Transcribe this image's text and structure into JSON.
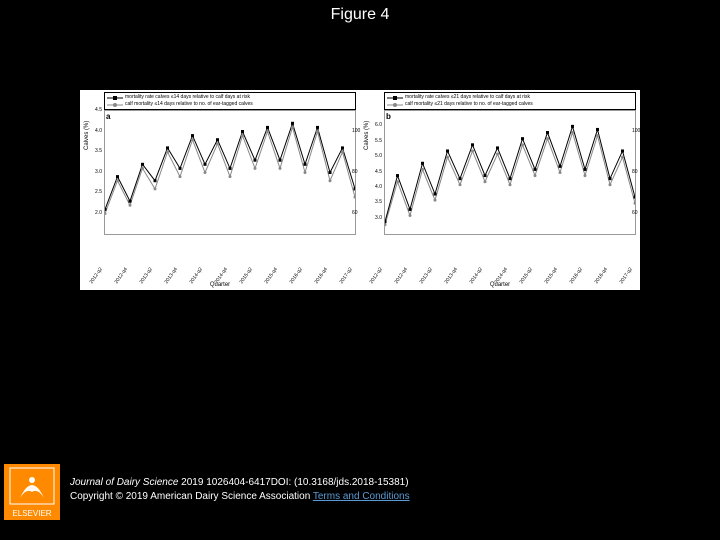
{
  "figure_title": "Figure 4",
  "background_color": "#000000",
  "chart_background": "#ffffff",
  "axis_color": "#999999",
  "x_labels": [
    "2012-q2",
    "2012-q4",
    "2013-q2",
    "2013-q4",
    "2014-q2",
    "2014-q4",
    "2015-q2",
    "2015-q4",
    "2016-q2",
    "2016-q4",
    "2017-q2"
  ],
  "panels": {
    "a": {
      "letter": "a",
      "legend": [
        "mortality rate calves ≤14 days relative to calf days at risk",
        "calf mortality ≤14 days relative to no. of ear-tagged calves"
      ],
      "yaxis_label": "Calves (%)",
      "xaxis_label": "Quarter",
      "y_left": {
        "min": 1.5,
        "max": 4.5,
        "ticks": [
          2.0,
          2.5,
          3.0,
          3.5,
          4.0,
          4.5
        ]
      },
      "y_right": {
        "min": 50,
        "max": 110,
        "ticks": [
          60,
          80,
          100
        ]
      },
      "series": [
        {
          "name": "s1",
          "color": "#000000",
          "marker": "square",
          "values": [
            2.1,
            2.9,
            2.3,
            3.2,
            2.8,
            3.6,
            3.1,
            3.9,
            3.2,
            3.8,
            3.1,
            4.0,
            3.3,
            4.1,
            3.3,
            4.2,
            3.2,
            4.1,
            3.0,
            3.6,
            2.6
          ]
        },
        {
          "name": "s2",
          "color": "#888888",
          "marker": "circle",
          "values": [
            2.0,
            2.8,
            2.2,
            3.1,
            2.6,
            3.5,
            2.9,
            3.8,
            3.0,
            3.7,
            2.9,
            3.9,
            3.1,
            4.0,
            3.1,
            4.1,
            3.0,
            4.0,
            2.8,
            3.5,
            2.4
          ]
        }
      ]
    },
    "b": {
      "letter": "b",
      "legend": [
        "mortality rate calves ≤21 days relative to calf days at risk",
        "calf mortality ≤21 days relative to no. of ear-tagged calves"
      ],
      "yaxis_label": "Calves (%)",
      "xaxis_label": "Quarter",
      "y_left": {
        "min": 2.5,
        "max": 6.5,
        "ticks": [
          3.0,
          3.5,
          4.0,
          4.5,
          5.0,
          5.5,
          6.0
        ]
      },
      "y_right": {
        "min": 50,
        "max": 110,
        "ticks": [
          60,
          80,
          100
        ]
      },
      "series": [
        {
          "name": "s1",
          "color": "#000000",
          "marker": "square",
          "values": [
            2.9,
            4.4,
            3.3,
            4.8,
            3.8,
            5.2,
            4.3,
            5.4,
            4.4,
            5.3,
            4.3,
            5.6,
            4.6,
            5.8,
            4.7,
            6.0,
            4.6,
            5.9,
            4.3,
            5.2,
            3.7
          ]
        },
        {
          "name": "s2",
          "color": "#888888",
          "marker": "circle",
          "values": [
            2.8,
            4.2,
            3.1,
            4.6,
            3.6,
            5.0,
            4.1,
            5.2,
            4.2,
            5.1,
            4.1,
            5.4,
            4.4,
            5.6,
            4.5,
            5.8,
            4.4,
            5.7,
            4.1,
            5.0,
            3.5
          ]
        }
      ]
    }
  },
  "footer": {
    "journal": "Journal of Dairy Science",
    "citation": " 2019 1026404-6417DOI: (10.3168/jds.2018-15381)",
    "copyright": "Copyright © 2019 American Dairy Science Association ",
    "terms": "Terms and Conditions"
  },
  "publisher": "ELSEVIER",
  "logo_colors": {
    "bg": "#ff8a00",
    "frame": "#ffffff"
  }
}
